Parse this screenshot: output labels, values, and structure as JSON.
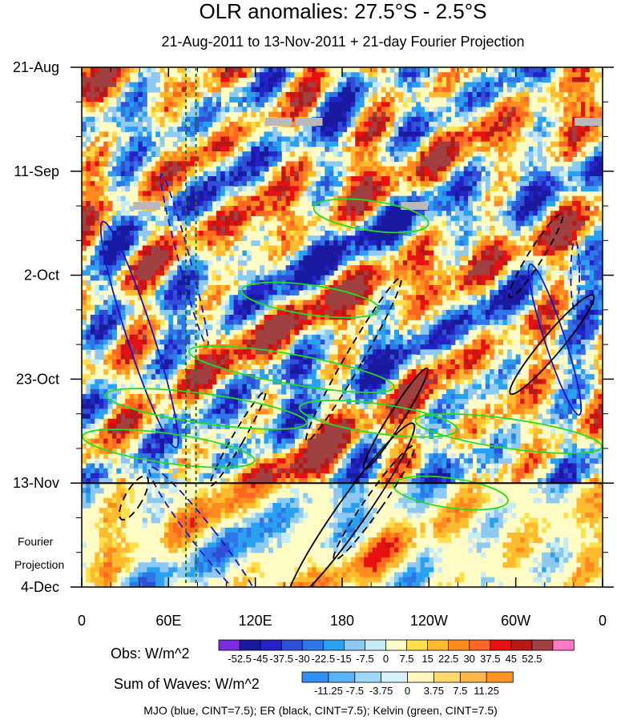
{
  "chart_data": {
    "type": "heatmap",
    "title": "OLR anomalies: 27.5°S - 2.5°S",
    "subtitle": "21-Aug-2011 to 13-Nov-2011 + 21-day Fourier Projection",
    "xlabel": "",
    "ylabel": "",
    "x_ticks": [
      {
        "lon": 0,
        "label": "0"
      },
      {
        "lon": 60,
        "label": "60E"
      },
      {
        "lon": 120,
        "label": "120E"
      },
      {
        "lon": 180,
        "label": "180"
      },
      {
        "lon": 240,
        "label": "120W"
      },
      {
        "lon": 300,
        "label": "60W"
      },
      {
        "lon": 360,
        "label": "0"
      }
    ],
    "xlim": [
      0,
      360
    ],
    "y_ticks": [
      {
        "day": 0,
        "label": "21-Aug"
      },
      {
        "day": 21,
        "label": "11-Sep"
      },
      {
        "day": 42,
        "label": "2-Oct"
      },
      {
        "day": 63,
        "label": "23-Oct"
      },
      {
        "day": 84,
        "label": "13-Nov"
      },
      {
        "day": 105,
        "label": "4-Dec"
      }
    ],
    "ylim_days": [
      0,
      105
    ],
    "observation_end_day": 84,
    "projection_label": "Fourier\nProjection",
    "reference_longitudes": [
      72,
      79
    ],
    "obs_colorbar": {
      "label": "Obs: W/m^2",
      "levels": [
        "-52.5",
        "-45",
        "-37.5",
        "-30",
        "-22.5",
        "-15",
        "-7.5",
        "0",
        "7.5",
        "15",
        "22.5",
        "30",
        "37.5",
        "45",
        "52.5"
      ],
      "colors": [
        "#7b2be0",
        "#1a1aa0",
        "#2323c8",
        "#2e4fd6",
        "#2f76e8",
        "#2aa0f0",
        "#8ec9f2",
        "#c8ecf6",
        "#fffbc4",
        "#ffe04a",
        "#ffbb2e",
        "#ff8a1e",
        "#ff6622",
        "#e81010",
        "#b81818",
        "#a04040",
        "#ff79c6"
      ]
    },
    "wave_colorbar": {
      "label": "Sum of Waves: W/m^2",
      "levels": [
        "-11.25",
        "-7.5",
        "-3.75",
        "0",
        "3.75",
        "7.5",
        "11.25"
      ],
      "colors": [
        "#2f8ff0",
        "#5bb5f5",
        "#9fd8f7",
        "#d7f1f9",
        "#fff7c0",
        "#ffd96e",
        "#ffb74a",
        "#ff9326"
      ]
    },
    "contours_legend": "MJO (blue, CINT=7.5); ER (black, CINT=7.5); Kelvin (green, CINT=7.5)",
    "series": [
      {
        "name": "MJO",
        "color": "#1515cc",
        "features": [
          {
            "lon": 71,
            "day": 39,
            "rx": 4,
            "ry": 18,
            "angle": -15,
            "sign": -1
          },
          {
            "lon": 40,
            "day": 54,
            "rx": 9,
            "ry": 24,
            "angle": -18,
            "sign": 1
          },
          {
            "lon": 327,
            "day": 55,
            "rx": 7,
            "ry": 16,
            "angle": -18,
            "sign": 1
          },
          {
            "lon": 341,
            "day": 42,
            "rx": 3,
            "ry": 7,
            "angle": 0,
            "sign": -1
          },
          {
            "lon": 85,
            "day": 95,
            "rx": 8,
            "ry": 18,
            "angle": -38,
            "sign": -1
          }
        ]
      },
      {
        "name": "ER",
        "color": "#000000",
        "features": [
          {
            "lon": 188,
            "day": 59,
            "rx": 6,
            "ry": 19,
            "angle": 30,
            "sign": -1
          },
          {
            "lon": 217,
            "day": 71,
            "rx": 5,
            "ry": 12,
            "angle": 32,
            "sign": 1
          },
          {
            "lon": 325,
            "day": 56,
            "rx": 7,
            "ry": 13,
            "angle": 40,
            "sign": 1
          },
          {
            "lon": 314,
            "day": 38,
            "rx": 5,
            "ry": 10,
            "angle": 32,
            "sign": -1
          },
          {
            "lon": 186,
            "day": 90,
            "rx": 10,
            "ry": 22,
            "angle": 35,
            "sign": 1
          },
          {
            "lon": 202,
            "day": 88,
            "rx": 6,
            "ry": 14,
            "angle": 35,
            "sign": -1
          },
          {
            "lon": 108,
            "day": 75,
            "rx": 4,
            "ry": 11,
            "angle": 30,
            "sign": -1
          },
          {
            "lon": 36,
            "day": 87,
            "rx": 6,
            "ry": 5,
            "angle": 30,
            "sign": -1
          }
        ]
      },
      {
        "name": "Kelvin",
        "color": "#22dd22",
        "features": [
          {
            "lon": 145,
            "day": 61,
            "rx": 72,
            "ry": 3,
            "angle": 10,
            "sign": 1
          },
          {
            "lon": 86,
            "day": 69,
            "rx": 70,
            "ry": 3,
            "angle": 8,
            "sign": 1
          },
          {
            "lon": 60,
            "day": 77,
            "rx": 60,
            "ry": 3,
            "angle": 8,
            "sign": 1
          },
          {
            "lon": 295,
            "day": 74,
            "rx": 65,
            "ry": 3,
            "angle": 8,
            "sign": 1
          },
          {
            "lon": 255,
            "day": 86,
            "rx": 40,
            "ry": 3,
            "angle": 8,
            "sign": 1
          },
          {
            "lon": 200,
            "day": 30,
            "rx": 40,
            "ry": 3,
            "angle": 8,
            "sign": 1
          },
          {
            "lon": 158,
            "day": 47,
            "rx": 48,
            "ry": 3,
            "angle": 8,
            "sign": 1
          },
          {
            "lon": 205,
            "day": 71,
            "rx": 55,
            "ry": 3,
            "angle": 8,
            "sign": 1
          }
        ]
      }
    ]
  }
}
